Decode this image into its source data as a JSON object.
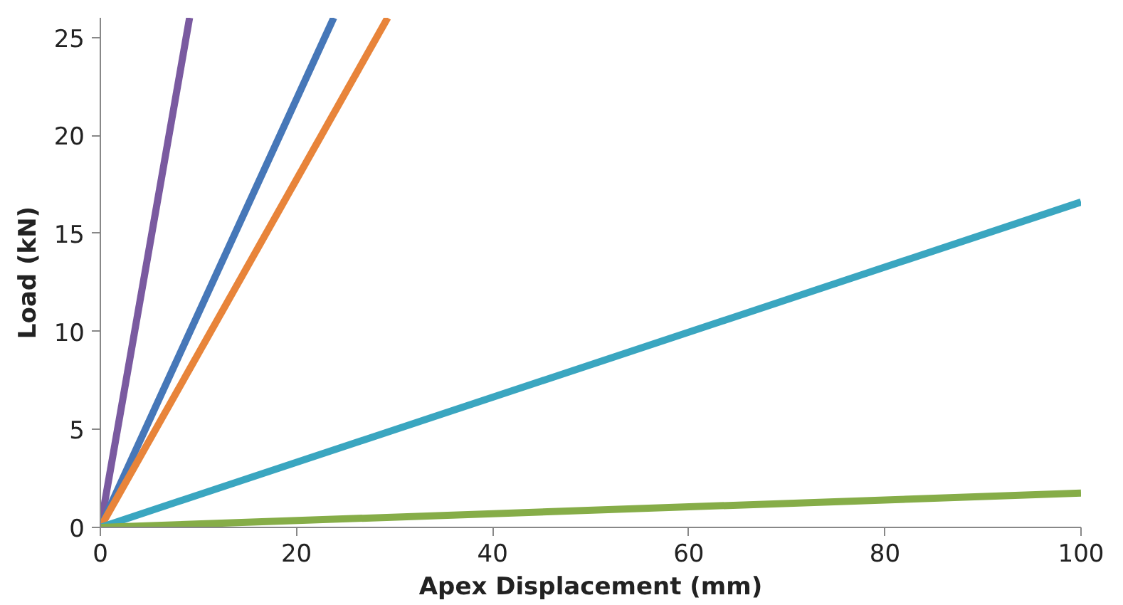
{
  "chart_data": {
    "type": "line",
    "xlabel": "Apex Displacement (mm)",
    "ylabel": "Load (kN)",
    "xlim": [
      0,
      100
    ],
    "ylim": [
      0,
      26
    ],
    "xticks": [
      0,
      20,
      40,
      60,
      80,
      100
    ],
    "yticks": [
      0,
      5,
      10,
      15,
      20,
      25
    ],
    "grid": false,
    "marker": "none",
    "line_style": "solid",
    "series": [
      {
        "color": "#7a5aa0",
        "x": [
          0,
          9.1
        ],
        "values": [
          0,
          26
        ]
      },
      {
        "color": "#4677b8",
        "x": [
          0,
          23.8
        ],
        "values": [
          0,
          26
        ]
      },
      {
        "color": "#e8843a",
        "x": [
          0,
          29.3
        ],
        "values": [
          0,
          26
        ]
      },
      {
        "color": "#3aa6c0",
        "x": [
          0,
          100
        ],
        "values": [
          0,
          16.6
        ]
      },
      {
        "color": "#86ad48",
        "x": [
          0,
          100
        ],
        "values": [
          0,
          1.75
        ]
      }
    ]
  }
}
